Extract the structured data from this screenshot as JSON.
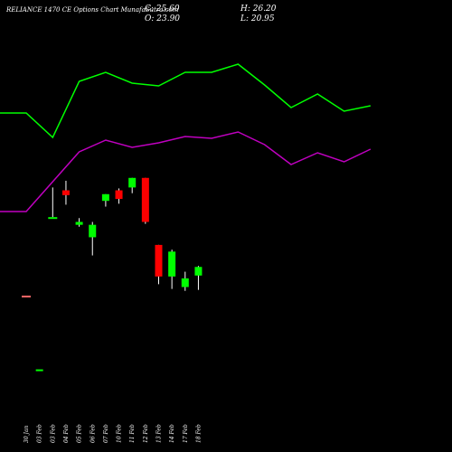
{
  "header": {
    "title": "RELIANCE 1470  CE Options  Chart MunafaSutra.com",
    "close": "C: 25.60",
    "open": "O: 23.90",
    "high": "H: 26.20",
    "low": "L: 20.95"
  },
  "colors": {
    "up": "#00ff00",
    "down": "#ff0000",
    "flat": "#ff6666",
    "upper_line": "#00ff00",
    "lower_line": "#c000c0",
    "background": "#000000"
  },
  "chart_data": {
    "type": "candlestick",
    "title": "RELIANCE 1470  CE Options  Chart MunafaSutra.com",
    "x": [
      "30 Jan",
      "03 Feb",
      "03 Feb",
      "04 Feb",
      "05 Feb",
      "06 Feb",
      "07 Feb",
      "10 Feb",
      "11 Feb",
      "12 Feb",
      "13 Feb",
      "14 Feb",
      "17 Feb",
      "18 Feb"
    ],
    "candles": [
      {
        "open": 11.8,
        "high": 11.8,
        "low": 11.8,
        "close": 11.8,
        "dir": "flat"
      },
      {
        "open": 4.1,
        "high": 4.1,
        "low": 4.1,
        "close": 4.1,
        "dir": "up"
      },
      {
        "open": 20.0,
        "high": 23.1,
        "low": 20.0,
        "close": 20.0,
        "dir": "flat-up"
      },
      {
        "open": 22.8,
        "high": 23.8,
        "low": 21.3,
        "close": 22.3,
        "dir": "down"
      },
      {
        "open": 19.2,
        "high": 19.9,
        "low": 19.0,
        "close": 19.5,
        "dir": "up"
      },
      {
        "open": 17.9,
        "high": 19.5,
        "low": 16.0,
        "close": 19.2,
        "dir": "up"
      },
      {
        "open": 21.7,
        "high": 22.4,
        "low": 21.1,
        "close": 22.4,
        "dir": "up"
      },
      {
        "open": 22.8,
        "high": 23.0,
        "low": 21.4,
        "close": 21.9,
        "dir": "down"
      },
      {
        "open": 23.1,
        "high": 24.1,
        "low": 22.5,
        "close": 24.1,
        "dir": "up"
      },
      {
        "open": 24.1,
        "high": 24.1,
        "low": 19.3,
        "close": 19.5,
        "dir": "down"
      },
      {
        "open": 17.1,
        "high": 17.1,
        "low": 13.0,
        "close": 13.8,
        "dir": "down"
      },
      {
        "open": 13.8,
        "high": 16.6,
        "low": 12.5,
        "close": 16.4,
        "dir": "up"
      },
      {
        "open": 12.7,
        "high": 14.3,
        "low": 12.3,
        "close": 13.6,
        "dir": "up"
      },
      {
        "open": 13.9,
        "high": 14.9,
        "low": 12.4,
        "close": 14.8,
        "dir": "up"
      }
    ],
    "upper_line": [
      125,
      125,
      152,
      90,
      80,
      92,
      95,
      80,
      80,
      71,
      94,
      119,
      104,
      123,
      117
    ],
    "lower_line": [
      234,
      234,
      201,
      168,
      155,
      163,
      158,
      151,
      153,
      146,
      160,
      182,
      169,
      179,
      165
    ],
    "price_range": [
      0,
      30
    ],
    "legend": "none",
    "grid": false
  }
}
